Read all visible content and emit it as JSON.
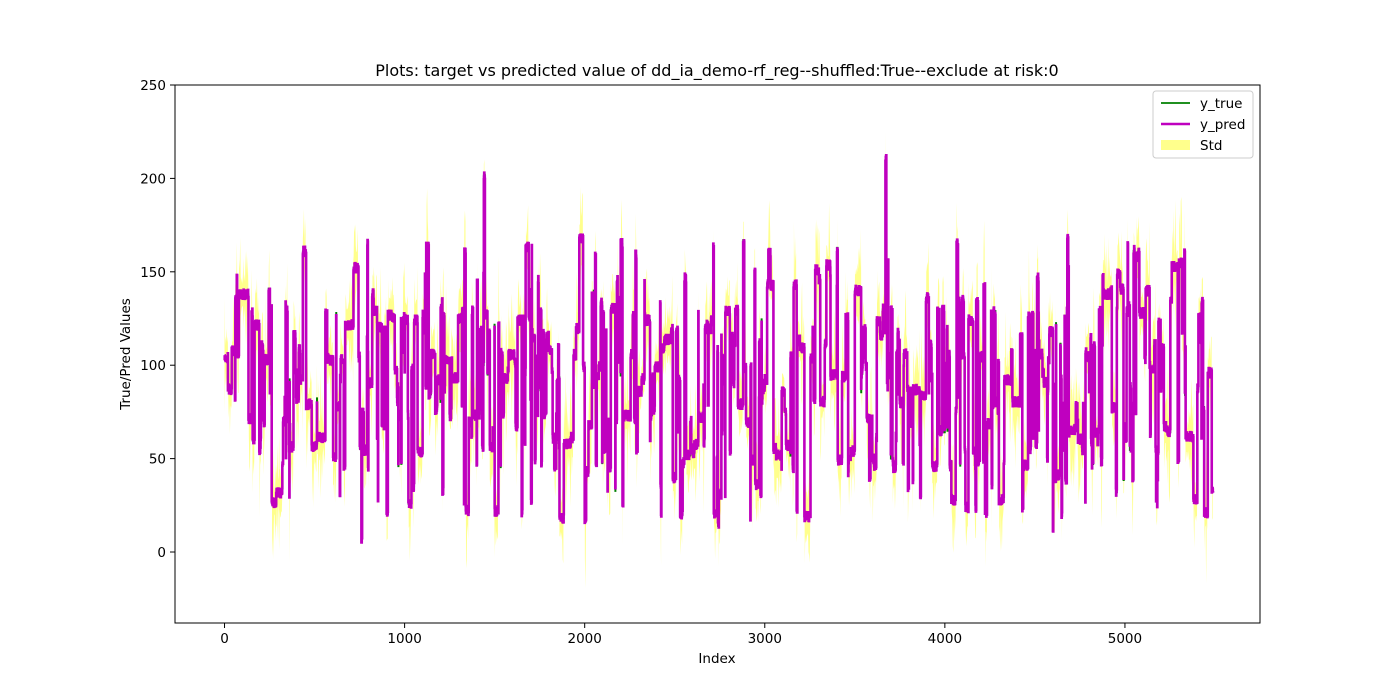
{
  "chart_data": {
    "type": "line",
    "title": "Plots: target vs predicted value of dd_ia_demo-rf_reg--shuffled:True--exclude at risk:0",
    "xlabel": "Index",
    "ylabel": "True/Pred Values",
    "xlim": [
      -275,
      5750
    ],
    "ylim": [
      -38,
      250
    ],
    "xticks": [
      0,
      1000,
      2000,
      3000,
      4000,
      5000
    ],
    "yticks": [
      0,
      50,
      100,
      150,
      200,
      250
    ],
    "grid": false,
    "legend_position": "upper right",
    "n_points": 5490,
    "series": [
      {
        "name": "y_true",
        "color": "#008000",
        "style": "step"
      },
      {
        "name": "y_pred",
        "color": "#bf00bf",
        "style": "step"
      },
      {
        "name": "Std",
        "color": "#ffff00",
        "style": "band",
        "alpha": 0.45
      }
    ],
    "anchor_points": [
      {
        "x": 0,
        "y": 104
      },
      {
        "x": 40,
        "y": 108
      },
      {
        "x": 80,
        "y": 138
      },
      {
        "x": 150,
        "y": 128
      },
      {
        "x": 200,
        "y": 60
      },
      {
        "x": 260,
        "y": 130
      },
      {
        "x": 360,
        "y": 30
      },
      {
        "x": 420,
        "y": 92
      },
      {
        "x": 560,
        "y": 128
      },
      {
        "x": 620,
        "y": 128
      },
      {
        "x": 640,
        "y": 32
      },
      {
        "x": 760,
        "y": 6
      },
      {
        "x": 820,
        "y": 138
      },
      {
        "x": 900,
        "y": 22
      },
      {
        "x": 980,
        "y": 125
      },
      {
        "x": 1000,
        "y": 97
      },
      {
        "x": 1100,
        "y": 127
      },
      {
        "x": 1200,
        "y": 130
      },
      {
        "x": 1210,
        "y": 33
      },
      {
        "x": 1330,
        "y": 28
      },
      {
        "x": 1440,
        "y": 202
      },
      {
        "x": 1460,
        "y": 95
      },
      {
        "x": 1500,
        "y": 22
      },
      {
        "x": 1650,
        "y": 21
      },
      {
        "x": 1710,
        "y": 115
      },
      {
        "x": 1800,
        "y": 108
      },
      {
        "x": 1860,
        "y": 18
      },
      {
        "x": 1970,
        "y": 168
      },
      {
        "x": 2000,
        "y": 18
      },
      {
        "x": 2050,
        "y": 140
      },
      {
        "x": 2200,
        "y": 165
      },
      {
        "x": 2210,
        "y": 27
      },
      {
        "x": 2420,
        "y": 133
      },
      {
        "x": 2530,
        "y": 20
      },
      {
        "x": 2740,
        "y": 14
      },
      {
        "x": 2780,
        "y": 30
      },
      {
        "x": 2880,
        "y": 167
      },
      {
        "x": 2920,
        "y": 18
      },
      {
        "x": 3020,
        "y": 160
      },
      {
        "x": 3160,
        "y": 143
      },
      {
        "x": 3220,
        "y": 19
      },
      {
        "x": 3300,
        "y": 146
      },
      {
        "x": 3400,
        "y": 142
      },
      {
        "x": 3500,
        "y": 140
      },
      {
        "x": 3560,
        "y": 100
      },
      {
        "x": 3580,
        "y": 40
      },
      {
        "x": 3640,
        "y": 116
      },
      {
        "x": 3670,
        "y": 210
      },
      {
        "x": 3700,
        "y": 50
      },
      {
        "x": 3810,
        "y": 69
      },
      {
        "x": 3860,
        "y": 58
      },
      {
        "x": 3970,
        "y": 65
      },
      {
        "x": 4170,
        "y": 24
      },
      {
        "x": 4300,
        "y": 28
      },
      {
        "x": 4370,
        "y": 108
      },
      {
        "x": 4430,
        "y": 23
      },
      {
        "x": 4520,
        "y": 128
      },
      {
        "x": 4580,
        "y": 118
      },
      {
        "x": 4600,
        "y": 12
      },
      {
        "x": 4680,
        "y": 168
      },
      {
        "x": 4780,
        "y": 27
      },
      {
        "x": 4880,
        "y": 138
      },
      {
        "x": 4950,
        "y": 32
      },
      {
        "x": 5080,
        "y": 128
      },
      {
        "x": 5140,
        "y": 62
      },
      {
        "x": 5180,
        "y": 40
      },
      {
        "x": 5260,
        "y": 153
      },
      {
        "x": 5300,
        "y": 155
      },
      {
        "x": 5330,
        "y": 160
      },
      {
        "x": 5380,
        "y": 28
      },
      {
        "x": 5440,
        "y": 21
      },
      {
        "x": 5460,
        "y": 96
      },
      {
        "x": 5490,
        "y": 90
      }
    ]
  }
}
